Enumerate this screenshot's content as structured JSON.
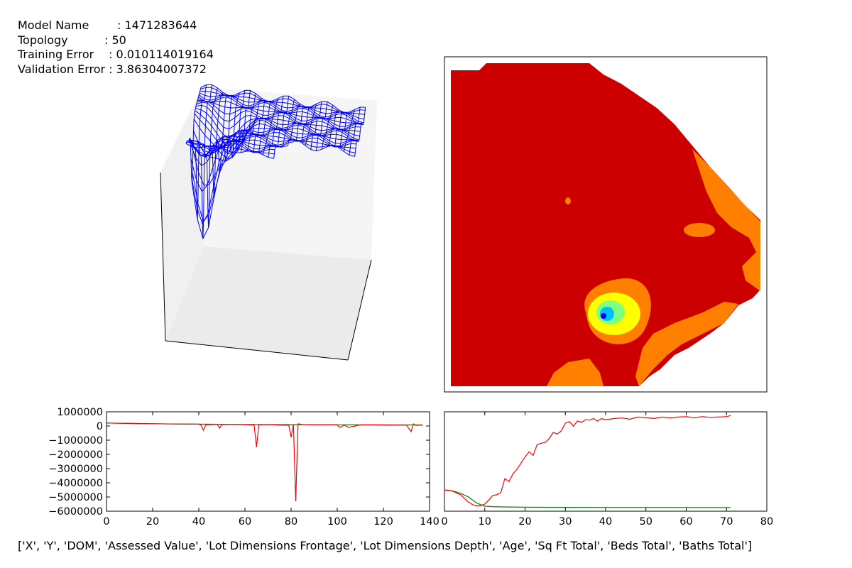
{
  "info": {
    "model_name_label": "Model Name",
    "model_name_value": ": 1471283644",
    "topology_label": "Topology",
    "topology_value": ": 50",
    "training_error_label": "Training Error",
    "training_error_value": ": 0.010114019164",
    "validation_error_label": "Validation Error",
    "validation_error_value": ": 3.86304007372"
  },
  "footer": {
    "features": "['X', 'Y', 'DOM', 'Assessed Value', 'Lot Dimensions Frontage', 'Lot Dimensions Depth', 'Age', 'Sq Ft Total', 'Beds Total', 'Baths Total']"
  },
  "colors": {
    "wireframe": "#0000ff",
    "contour_red": "#cc0000",
    "contour_orange": "#ff7f00",
    "contour_yellow": "#ffff00",
    "contour_green": "#7fff7f",
    "contour_cyan": "#00bfff",
    "contour_blue": "#0000ff",
    "series_red": "#ff0000",
    "series_green": "#008000"
  },
  "chart_data": [
    {
      "type": "surface3d",
      "title": "",
      "note": "wireframe surface with deep negative spike near left-center"
    },
    {
      "type": "contour",
      "title": "",
      "levels_colors": [
        "#cc0000",
        "#ff7f00",
        "#ffff00",
        "#7fff7f",
        "#00bfff",
        "#0000ff"
      ]
    },
    {
      "type": "line",
      "title": "",
      "xlabel": "",
      "ylabel": "",
      "xlim": [
        0,
        140
      ],
      "ylim": [
        -6000000,
        1000000
      ],
      "xticks": [
        0,
        20,
        40,
        60,
        80,
        100,
        120,
        140
      ],
      "yticks": [
        1000000,
        0,
        -1000000,
        -2000000,
        -3000000,
        -4000000,
        -5000000,
        -6000000
      ],
      "ytick_labels": [
        "1000000",
        "0",
        "−1000000",
        "−2000000",
        "−3000000",
        "−4000000",
        "−5000000",
        "−6000000"
      ],
      "series": [
        {
          "color": "#008000",
          "x": [
            0,
            10,
            20,
            30,
            40,
            50,
            60,
            70,
            80,
            90,
            100,
            110,
            120,
            130,
            137
          ],
          "y": [
            210000,
            180000,
            160000,
            140000,
            130000,
            120000,
            110000,
            100000,
            95000,
            90000,
            85000,
            80000,
            80000,
            75000,
            75000
          ]
        },
        {
          "color": "#ff0000",
          "x": [
            0,
            10,
            20,
            30,
            40,
            41,
            42,
            43,
            48,
            49,
            50,
            55,
            60,
            64,
            65,
            66,
            70,
            75,
            79,
            80,
            81,
            82,
            83,
            85,
            90,
            100,
            101,
            103,
            105,
            110,
            120,
            130,
            132,
            133,
            134,
            137
          ],
          "y": [
            210000,
            180000,
            160000,
            140000,
            130000,
            50000,
            -300000,
            80000,
            120000,
            -150000,
            100000,
            120000,
            90000,
            60000,
            -1500000,
            80000,
            100000,
            60000,
            50000,
            -800000,
            100000,
            -5300000,
            150000,
            100000,
            80000,
            90000,
            -100000,
            50000,
            -100000,
            80000,
            70000,
            60000,
            -400000,
            150000,
            50000,
            60000
          ]
        }
      ]
    },
    {
      "type": "line",
      "title": "",
      "xlabel": "",
      "ylabel": "",
      "xlim": [
        0,
        80
      ],
      "xticks": [
        0,
        10,
        20,
        30,
        40,
        50,
        60,
        70,
        80
      ],
      "series": [
        {
          "color": "#008000",
          "x": [
            0,
            2,
            4,
            6,
            8,
            10,
            12,
            15,
            20,
            30,
            40,
            50,
            60,
            71
          ],
          "y": [
            0.58,
            0.55,
            0.47,
            0.35,
            0.15,
            0.05,
            0.035,
            0.025,
            0.018,
            0.012,
            0.01,
            0.009,
            0.008,
            0.007
          ]
        },
        {
          "color": "#ff0000",
          "x": [
            0,
            2,
            4,
            6,
            7,
            8,
            9,
            10,
            11,
            12,
            13,
            14,
            15,
            16,
            17,
            18,
            19,
            20,
            21,
            22,
            23,
            24,
            25,
            26,
            27,
            28,
            29,
            30,
            31,
            32,
            33,
            34,
            35,
            36,
            37,
            38,
            39,
            40,
            42,
            44,
            46,
            48,
            50,
            52,
            54,
            56,
            58,
            60,
            62,
            64,
            66,
            68,
            70,
            71
          ],
          "y": [
            0.58,
            0.54,
            0.42,
            0.18,
            0.1,
            0.06,
            0.07,
            0.12,
            0.25,
            0.4,
            0.42,
            0.5,
            0.95,
            0.85,
            1.1,
            1.25,
            1.45,
            1.65,
            1.82,
            1.7,
            2.05,
            2.1,
            2.12,
            2.25,
            2.45,
            2.4,
            2.5,
            2.75,
            2.8,
            2.65,
            2.82,
            2.78,
            2.86,
            2.85,
            2.9,
            2.82,
            2.9,
            2.86,
            2.9,
            2.92,
            2.88,
            2.95,
            2.93,
            2.9,
            2.95,
            2.92,
            2.95,
            2.96,
            2.93,
            2.96,
            2.94,
            2.95,
            2.96,
            3.0
          ]
        }
      ]
    }
  ]
}
